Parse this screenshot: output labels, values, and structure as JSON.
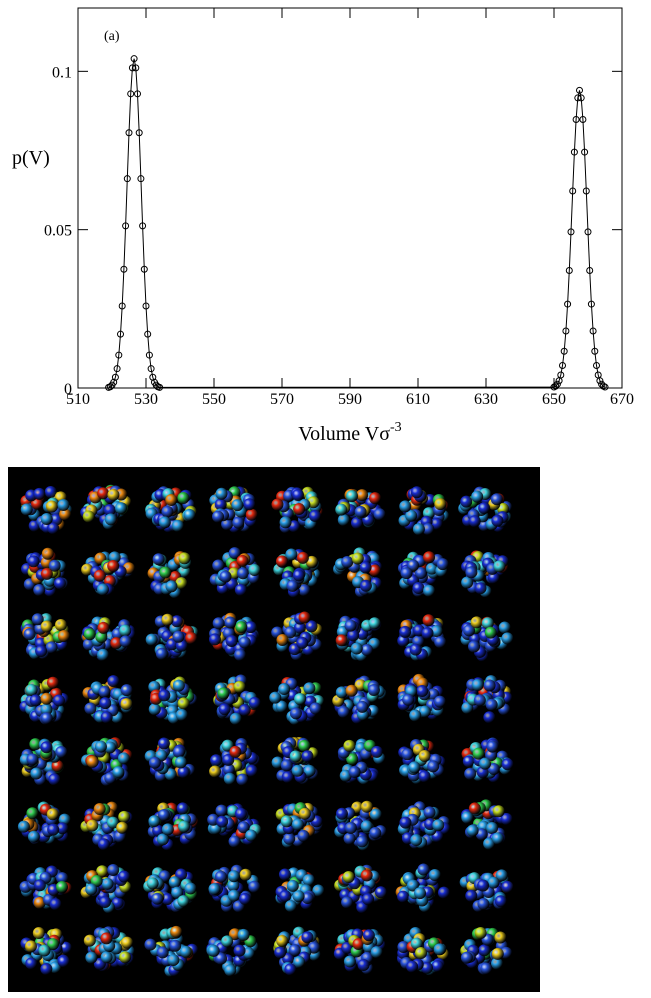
{
  "chart_data": {
    "type": "line",
    "annotation": "(a)",
    "y_label": "p(V)",
    "x_label": {
      "text": "Volume Vσ",
      "superscript": "-3"
    },
    "xlim": [
      510,
      670
    ],
    "xticks": [
      510,
      530,
      550,
      570,
      590,
      610,
      630,
      650,
      670
    ],
    "ylim": [
      0,
      0.12
    ],
    "yticks": [
      0,
      0.05,
      0.1
    ],
    "x": [
      519,
      519.5,
      520,
      520.5,
      521,
      521.5,
      522,
      522.5,
      523,
      523.5,
      524,
      524.5,
      525,
      525.5,
      526,
      526.5,
      527,
      527.5,
      528,
      528.5,
      529,
      529.5,
      530,
      530.5,
      531,
      531.5,
      532,
      532.5,
      533,
      533.5,
      534,
      650,
      650.5,
      651,
      651.5,
      652,
      652.5,
      653,
      653.5,
      654,
      654.5,
      655,
      655.5,
      656,
      656.5,
      657,
      657.5,
      658,
      658.5,
      659,
      659.5,
      660,
      660.5,
      661,
      661.5,
      662,
      662.5,
      663,
      663.5,
      664,
      664.5,
      665
    ],
    "series": [
      {
        "color": "#000000",
        "values": [
          0.0002,
          0.0004,
          0.0009,
          0.0018,
          0.0034,
          0.0061,
          0.0104,
          0.017,
          0.0259,
          0.0375,
          0.0512,
          0.0661,
          0.0806,
          0.0929,
          0.1011,
          0.104,
          0.1011,
          0.0929,
          0.0806,
          0.0661,
          0.0512,
          0.0375,
          0.0259,
          0.017,
          0.0104,
          0.0061,
          0.0034,
          0.0018,
          0.0009,
          0.0004,
          0.0002,
          0.0003,
          0.0006,
          0.0012,
          0.0023,
          0.0041,
          0.0071,
          0.0116,
          0.018,
          0.0265,
          0.0371,
          0.0493,
          0.0622,
          0.0745,
          0.0848,
          0.0916,
          0.094,
          0.0916,
          0.0848,
          0.0745,
          0.0622,
          0.0493,
          0.0371,
          0.0265,
          0.018,
          0.0116,
          0.0071,
          0.0041,
          0.0023,
          0.0012,
          0.0006,
          0.0003
        ]
      }
    ]
  }
}
